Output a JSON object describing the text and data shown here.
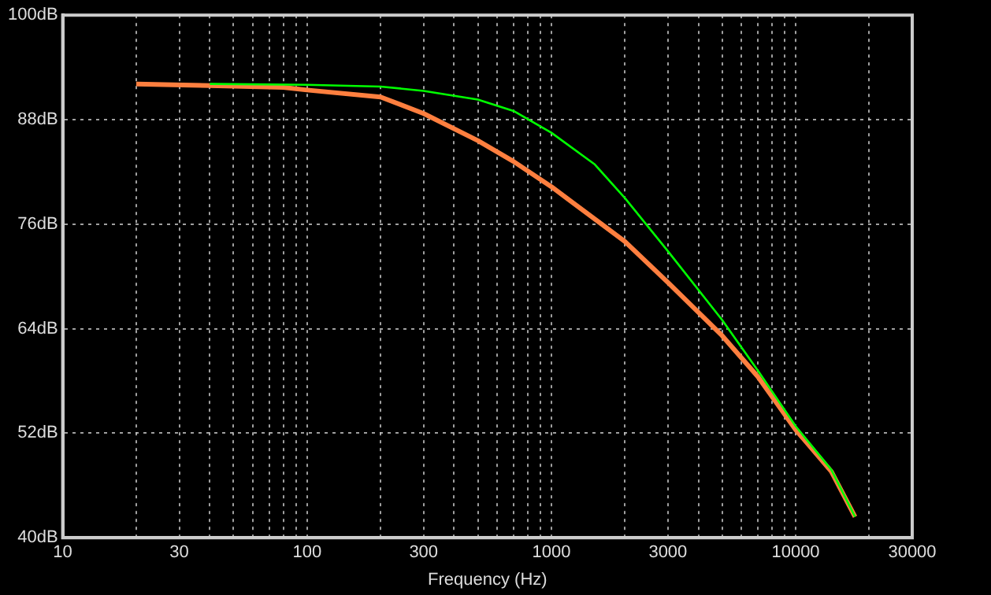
{
  "chart_data": {
    "type": "line",
    "xlabel": "Frequency (Hz)",
    "log": "x",
    "grid": true,
    "legend": false,
    "marker": "none",
    "line_style": "solid",
    "xlim": [
      10,
      30000
    ],
    "xticks": [
      10,
      {
        "value": 20,
        "label": null
      },
      30,
      {
        "value": 40,
        "label": null
      },
      {
        "value": 50,
        "label": null
      },
      {
        "value": 60,
        "label": null
      },
      {
        "value": 70,
        "label": null
      },
      {
        "value": 80,
        "label": null
      },
      {
        "value": 90,
        "label": null
      },
      100,
      {
        "value": 200,
        "label": null
      },
      300,
      {
        "value": 400,
        "label": null
      },
      {
        "value": 500,
        "label": null
      },
      {
        "value": 600,
        "label": null
      },
      {
        "value": 700,
        "label": null
      },
      {
        "value": 800,
        "label": null
      },
      {
        "value": 900,
        "label": null
      },
      1000,
      {
        "value": 2000,
        "label": null
      },
      3000,
      {
        "value": 4000,
        "label": null
      },
      {
        "value": 5000,
        "label": null
      },
      {
        "value": 6000,
        "label": null
      },
      {
        "value": 7000,
        "label": null
      },
      {
        "value": 8000,
        "label": null
      },
      {
        "value": 9000,
        "label": null
      },
      10000,
      {
        "value": 20000,
        "label": null
      },
      30000
    ],
    "ylim": [
      40,
      100
    ],
    "yticks": [
      {
        "value": 40,
        "label": "40dB"
      },
      {
        "value": 52,
        "label": "52dB"
      },
      {
        "value": 64,
        "label": "64dB"
      },
      {
        "value": 76,
        "label": "76dB"
      },
      {
        "value": 88,
        "label": "88dB"
      },
      {
        "value": 100,
        "label": "100dB"
      }
    ],
    "series": [
      {
        "color": "#00ff00",
        "x": [
          40,
          100,
          200,
          300,
          500,
          700,
          1000,
          1500,
          2000,
          3000,
          5000,
          7000,
          10000,
          14000,
          17500
        ],
        "values": [
          92.1,
          92.0,
          91.8,
          91.3,
          90.3,
          89.0,
          86.5,
          82.9,
          79.0,
          72.9,
          65.0,
          59.2,
          52.8,
          47.8,
          42.4
        ]
      },
      {
        "color": "#ff7f3f",
        "x": [
          20,
          40,
          80,
          100,
          200,
          300,
          500,
          700,
          1000,
          2000,
          3000,
          5000,
          7000,
          10000,
          14000,
          17500
        ],
        "values": [
          92.1,
          91.9,
          91.7,
          91.4,
          90.6,
          88.7,
          85.6,
          83.2,
          80.3,
          74.0,
          69.3,
          63.2,
          58.5,
          52.4,
          47.6,
          42.4
        ]
      }
    ]
  }
}
